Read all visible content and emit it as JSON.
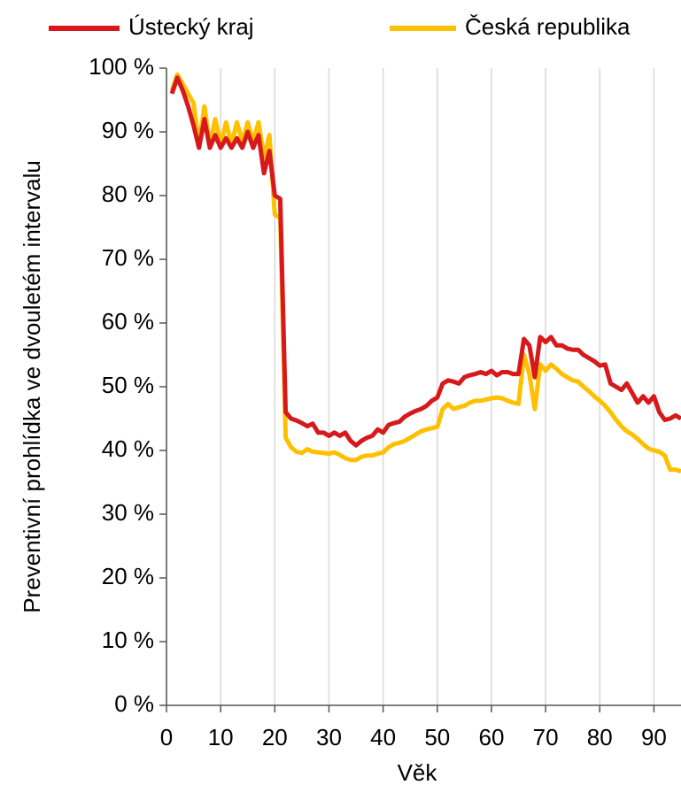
{
  "chart_data": {
    "type": "line",
    "x_label": "Věk",
    "y_label": "Preventivní prohlídka ve dvouletém intervalu",
    "x": [
      1,
      2,
      3,
      4,
      5,
      6,
      7,
      8,
      9,
      10,
      11,
      12,
      13,
      14,
      15,
      16,
      17,
      18,
      19,
      20,
      21,
      22,
      23,
      24,
      25,
      26,
      27,
      28,
      29,
      30,
      31,
      32,
      33,
      34,
      35,
      36,
      37,
      38,
      39,
      40,
      41,
      42,
      43,
      44,
      45,
      46,
      47,
      48,
      49,
      50,
      51,
      52,
      53,
      54,
      55,
      56,
      57,
      58,
      59,
      60,
      61,
      62,
      63,
      64,
      65,
      66,
      67,
      68,
      69,
      70,
      71,
      72,
      73,
      74,
      75,
      76,
      77,
      78,
      79,
      80,
      81,
      82,
      83,
      84,
      85,
      86,
      87,
      88,
      89,
      90,
      91,
      92,
      93,
      94,
      95
    ],
    "series": [
      {
        "name": "Ústecký kraj",
        "color": "#d7191c",
        "values": [
          96,
          98.5,
          96.5,
          94,
          91,
          87.5,
          92,
          87.5,
          89.5,
          87.5,
          89,
          87.5,
          89,
          87.5,
          90,
          87.5,
          89.5,
          83.5,
          87,
          80,
          79.5,
          46,
          45,
          44.7,
          44.3,
          43.8,
          44.2,
          42.8,
          42.8,
          42.3,
          42.8,
          42.3,
          42.8,
          41.5,
          40.8,
          41.5,
          42,
          42.3,
          43.3,
          42.8,
          44,
          44.3,
          44.5,
          45.3,
          45.8,
          46.2,
          46.5,
          47,
          47.8,
          48.3,
          50.5,
          51,
          50.8,
          50.5,
          51.5,
          51.8,
          52,
          52.3,
          52,
          52.5,
          51.8,
          52.3,
          52.3,
          52,
          52,
          57.5,
          56.5,
          51.5,
          57.8,
          57,
          57.8,
          56.5,
          56.5,
          56,
          55.8,
          55.8,
          55,
          54.5,
          54,
          53.3,
          53.5,
          50.5,
          50,
          49.5,
          50.5,
          49,
          47.5,
          48.5,
          47.5,
          48.5,
          46,
          44.8,
          45,
          45.5,
          45
        ]
      },
      {
        "name": "Česká republika",
        "color": "#ffc000",
        "values": [
          96.5,
          99,
          97.5,
          96,
          94.5,
          88,
          94,
          88,
          92,
          88,
          91.5,
          88,
          91.5,
          88.5,
          91.5,
          88.5,
          91.5,
          86,
          89.5,
          77,
          76.5,
          42,
          40.5,
          39.8,
          39.6,
          40.2,
          39.8,
          39.7,
          39.6,
          39.5,
          39.7,
          39.3,
          38.8,
          38.5,
          38.5,
          39,
          39.2,
          39.2,
          39.5,
          39.7,
          40.5,
          41,
          41.2,
          41.5,
          42,
          42.5,
          43,
          43.3,
          43.5,
          43.7,
          46.5,
          47.3,
          46.5,
          46.8,
          47,
          47.5,
          47.8,
          47.8,
          48,
          48.2,
          48.3,
          48.2,
          47.8,
          47.5,
          47.3,
          55,
          52,
          46.5,
          53.5,
          52.5,
          53.5,
          52.8,
          52,
          51.5,
          51,
          50.8,
          50,
          49.3,
          48.5,
          47.8,
          47,
          46,
          44.8,
          43.8,
          43,
          42.5,
          41.8,
          41,
          40.3,
          40,
          39.8,
          39.2,
          37,
          37,
          36.7
        ]
      }
    ],
    "xlim": [
      0,
      95
    ],
    "xticks": [
      0,
      10,
      20,
      30,
      40,
      50,
      60,
      70,
      80,
      90
    ],
    "ylim": [
      0,
      100
    ],
    "yticks": [
      {
        "value": 0,
        "label": "0 %"
      },
      {
        "value": 10,
        "label": "10 %"
      },
      {
        "value": 20,
        "label": "20 %"
      },
      {
        "value": 30,
        "label": "30 %"
      },
      {
        "value": 40,
        "label": "40 %"
      },
      {
        "value": 50,
        "label": "50 %"
      },
      {
        "value": 60,
        "label": "60 %"
      },
      {
        "value": 70,
        "label": "70 %"
      },
      {
        "value": 80,
        "label": "80 %"
      },
      {
        "value": 90,
        "label": "90 %"
      },
      {
        "value": 100,
        "label": "100 %"
      }
    ],
    "grid": "x",
    "legend": "top"
  }
}
